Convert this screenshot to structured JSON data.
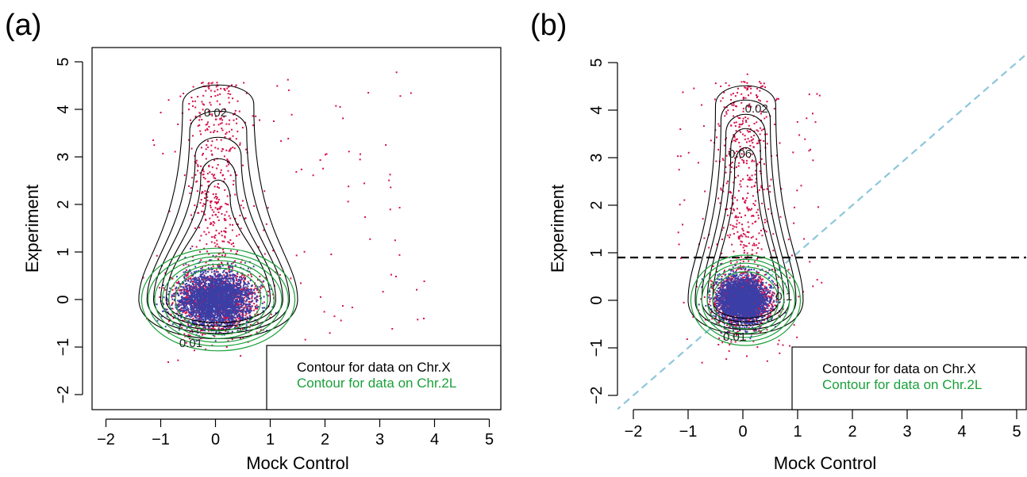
{
  "colors": {
    "points_chrX": "#d6104a",
    "points_chr2L": "#3b3fa6",
    "contour_chrX": "#000000",
    "contour_chr2L": "#1aa13a",
    "diagonal": "#8cc7db",
    "threshold": "#000000"
  },
  "chart_data": [
    {
      "type": "scatter",
      "panel_label": "(a)",
      "xlabel": "Mock Control",
      "ylabel": "Experiment",
      "xlim": [
        -2.3,
        5.3
      ],
      "ylim": [
        -2.3,
        5.3
      ],
      "x_ticks": [
        "−2",
        "−1",
        "0",
        "1",
        "2",
        "3",
        "4",
        "5"
      ],
      "y_ticks": [
        "−2",
        "−1",
        "0",
        "1",
        "2",
        "3",
        "4",
        "5"
      ],
      "legend": [
        "Contour for data on Chr.X",
        "Contour for data on Chr.2L"
      ],
      "legend_position": "bottom-right",
      "contour_labels": [
        "0.02",
        "0.01"
      ],
      "series": [
        {
          "name": "Chr.X",
          "center": [
            0.0,
            0.0
          ],
          "spread": [
            0.38,
            0.32
          ],
          "tail_top": 4.6,
          "max_x": 4.0
        },
        {
          "name": "Chr.2L",
          "center": [
            0.0,
            0.0
          ],
          "spread": [
            0.33,
            0.28
          ]
        }
      ],
      "reference_lines": []
    },
    {
      "type": "scatter",
      "panel_label": "(b)",
      "xlabel": "Mock Control",
      "ylabel": "Experiment",
      "xlim": [
        -2.3,
        5.3
      ],
      "ylim": [
        -2.3,
        5.3
      ],
      "x_ticks": [
        "−2",
        "−1",
        "0",
        "1",
        "2",
        "3",
        "4",
        "5"
      ],
      "y_ticks": [
        "−2",
        "−1",
        "0",
        "1",
        "2",
        "3",
        "4",
        "5"
      ],
      "legend": [
        "Contour for data on Chr.X",
        "Contour for data on Chr.2L"
      ],
      "legend_position": "bottom-right",
      "contour_labels": [
        "0.02",
        "0.06",
        "0.1",
        "0.01"
      ],
      "series": [
        {
          "name": "Chr.X",
          "center": [
            0.0,
            0.0
          ],
          "spread": [
            0.25,
            0.28
          ],
          "tail_top": 4.6,
          "max_x": 1.5
        },
        {
          "name": "Chr.2L",
          "center": [
            0.0,
            0.0
          ],
          "spread": [
            0.22,
            0.25
          ]
        }
      ],
      "reference_lines": [
        {
          "kind": "diagonal",
          "slope": 1,
          "intercept": 0
        },
        {
          "kind": "horizontal",
          "y": 0.9
        }
      ]
    }
  ]
}
